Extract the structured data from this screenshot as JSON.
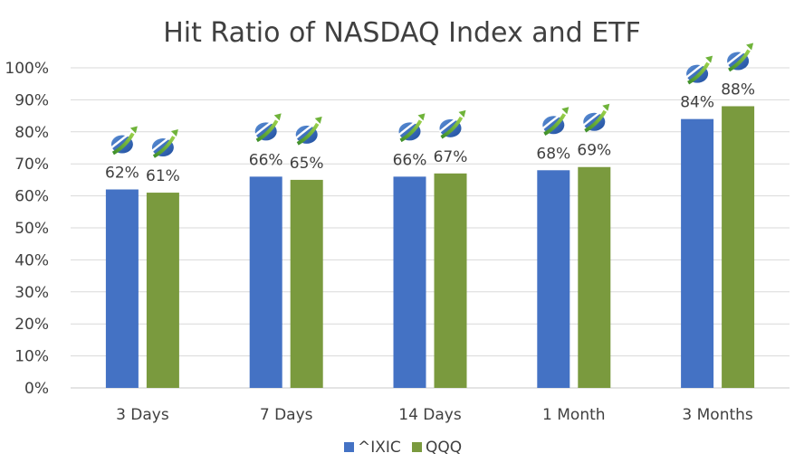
{
  "chart_data": {
    "type": "bar",
    "title": "Hit Ratio of NASDAQ Index and ETF",
    "xlabel": "",
    "ylabel": "",
    "ylim": [
      0,
      100
    ],
    "yticks": [
      "0%",
      "10%",
      "20%",
      "30%",
      "40%",
      "50%",
      "60%",
      "70%",
      "80%",
      "90%",
      "100%"
    ],
    "categories": [
      "3 Days",
      "7 Days",
      "14 Days",
      "1 Month",
      "3 Months"
    ],
    "series": [
      {
        "name": "^IXIC",
        "color": "#4472C4",
        "values": [
          62,
          66,
          66,
          68,
          84
        ],
        "labels": [
          "62%",
          "66%",
          "66%",
          "68%",
          "84%"
        ]
      },
      {
        "name": "QQQ",
        "color": "#7A9A3E",
        "values": [
          61,
          65,
          67,
          69,
          88
        ],
        "labels": [
          "61%",
          "65%",
          "67%",
          "69%",
          "88%"
        ]
      }
    ],
    "legend_position": "bottom",
    "grid": true,
    "marker_icon": "growth-logo-icon"
  }
}
